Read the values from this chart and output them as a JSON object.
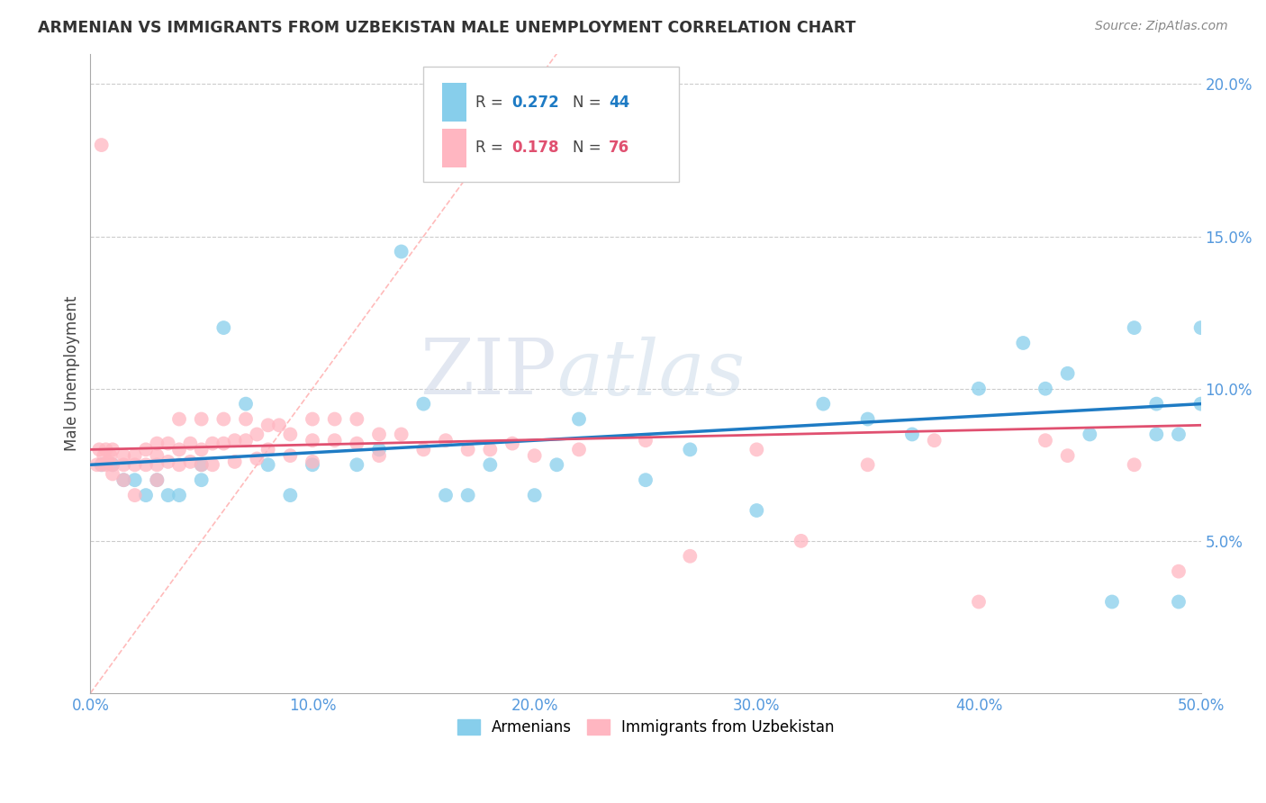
{
  "title": "ARMENIAN VS IMMIGRANTS FROM UZBEKISTAN MALE UNEMPLOYMENT CORRELATION CHART",
  "source": "Source: ZipAtlas.com",
  "ylabel": "Male Unemployment",
  "xlim": [
    0.0,
    0.5
  ],
  "ylim": [
    0.0,
    0.21
  ],
  "yticks": [
    0.05,
    0.1,
    0.15,
    0.2
  ],
  "ytick_labels": [
    "5.0%",
    "10.0%",
    "15.0%",
    "20.0%"
  ],
  "xticks": [
    0.0,
    0.1,
    0.2,
    0.3,
    0.4,
    0.5
  ],
  "xtick_labels": [
    "0.0%",
    "10.0%",
    "20.0%",
    "30.0%",
    "40.0%",
    "50.0%"
  ],
  "armenian_R": 0.272,
  "armenian_N": 44,
  "uzbek_R": 0.178,
  "uzbek_N": 76,
  "color_armenian": "#87CEEB",
  "color_uzbek": "#FFB6C1",
  "color_line_armenian": "#1E7BC4",
  "color_line_uzbek": "#E05070",
  "color_diag": "#FFB6C1",
  "watermark_zip": "ZIP",
  "watermark_atlas": "atlas",
  "armenian_x": [
    0.005,
    0.01,
    0.015,
    0.02,
    0.025,
    0.03,
    0.035,
    0.04,
    0.05,
    0.05,
    0.06,
    0.07,
    0.08,
    0.09,
    0.1,
    0.12,
    0.13,
    0.14,
    0.15,
    0.16,
    0.17,
    0.18,
    0.2,
    0.21,
    0.22,
    0.25,
    0.27,
    0.3,
    0.33,
    0.35,
    0.37,
    0.4,
    0.42,
    0.43,
    0.44,
    0.45,
    0.46,
    0.47,
    0.48,
    0.48,
    0.49,
    0.49,
    0.5,
    0.5
  ],
  "armenian_y": [
    0.075,
    0.075,
    0.07,
    0.07,
    0.065,
    0.07,
    0.065,
    0.065,
    0.075,
    0.07,
    0.12,
    0.095,
    0.075,
    0.065,
    0.075,
    0.075,
    0.08,
    0.145,
    0.095,
    0.065,
    0.065,
    0.075,
    0.065,
    0.075,
    0.09,
    0.07,
    0.08,
    0.06,
    0.095,
    0.09,
    0.085,
    0.1,
    0.115,
    0.1,
    0.105,
    0.085,
    0.03,
    0.12,
    0.095,
    0.085,
    0.03,
    0.085,
    0.095,
    0.12
  ],
  "uzbek_x": [
    0.003,
    0.004,
    0.005,
    0.006,
    0.007,
    0.007,
    0.008,
    0.009,
    0.01,
    0.01,
    0.01,
    0.015,
    0.015,
    0.015,
    0.02,
    0.02,
    0.02,
    0.025,
    0.025,
    0.03,
    0.03,
    0.03,
    0.03,
    0.035,
    0.035,
    0.04,
    0.04,
    0.04,
    0.045,
    0.045,
    0.05,
    0.05,
    0.05,
    0.055,
    0.055,
    0.06,
    0.06,
    0.065,
    0.065,
    0.07,
    0.07,
    0.075,
    0.075,
    0.08,
    0.08,
    0.085,
    0.09,
    0.09,
    0.1,
    0.1,
    0.1,
    0.11,
    0.11,
    0.12,
    0.12,
    0.13,
    0.13,
    0.14,
    0.15,
    0.16,
    0.17,
    0.18,
    0.19,
    0.2,
    0.22,
    0.25,
    0.27,
    0.3,
    0.32,
    0.35,
    0.38,
    0.4,
    0.43,
    0.44,
    0.47,
    0.49
  ],
  "uzbek_y": [
    0.075,
    0.08,
    0.075,
    0.078,
    0.08,
    0.075,
    0.076,
    0.078,
    0.08,
    0.075,
    0.072,
    0.075,
    0.078,
    0.07,
    0.078,
    0.075,
    0.065,
    0.08,
    0.075,
    0.078,
    0.082,
    0.075,
    0.07,
    0.082,
    0.076,
    0.09,
    0.08,
    0.075,
    0.082,
    0.076,
    0.08,
    0.09,
    0.075,
    0.082,
    0.075,
    0.09,
    0.082,
    0.083,
    0.076,
    0.09,
    0.083,
    0.085,
    0.077,
    0.088,
    0.08,
    0.088,
    0.085,
    0.078,
    0.09,
    0.083,
    0.076,
    0.09,
    0.083,
    0.09,
    0.082,
    0.085,
    0.078,
    0.085,
    0.08,
    0.083,
    0.08,
    0.08,
    0.082,
    0.078,
    0.08,
    0.083,
    0.045,
    0.08,
    0.05,
    0.075,
    0.083,
    0.03,
    0.083,
    0.078,
    0.075,
    0.04
  ],
  "uzbek_outlier_x": [
    0.005
  ],
  "uzbek_outlier_y": [
    0.18
  ]
}
